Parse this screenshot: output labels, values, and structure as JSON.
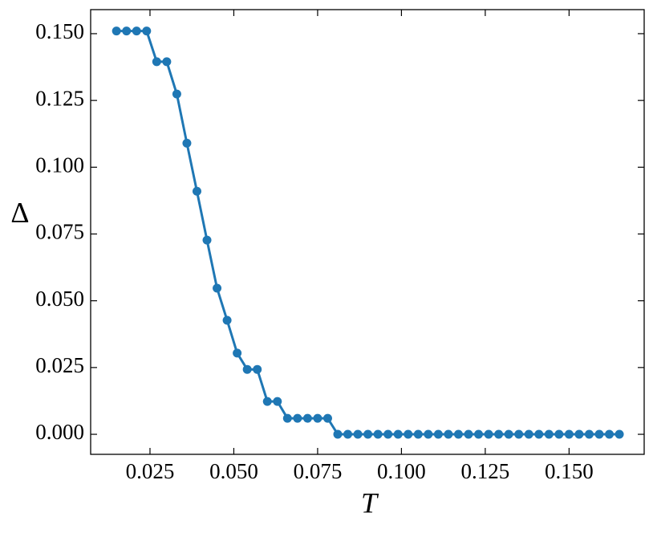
{
  "chart_data": {
    "type": "line",
    "xlabel": "T",
    "ylabel": "Δ",
    "x": [
      0.015,
      0.018,
      0.021,
      0.024,
      0.027,
      0.03,
      0.033,
      0.036,
      0.039,
      0.042,
      0.045,
      0.048,
      0.051,
      0.054,
      0.057,
      0.06,
      0.063,
      0.066,
      0.069,
      0.072,
      0.075,
      0.078,
      0.081,
      0.084,
      0.087,
      0.09,
      0.093,
      0.096,
      0.099,
      0.102,
      0.105,
      0.108,
      0.111,
      0.114,
      0.117,
      0.12,
      0.123,
      0.126,
      0.129,
      0.132,
      0.135,
      0.138,
      0.141,
      0.144,
      0.147,
      0.15,
      0.153,
      0.156,
      0.159,
      0.162,
      0.165
    ],
    "series": [
      {
        "color": "#1f77b4",
        "values": [
          0.151,
          0.151,
          0.151,
          0.151,
          0.1395,
          0.1395,
          0.1274,
          0.109,
          0.091,
          0.0727,
          0.0547,
          0.0427,
          0.0304,
          0.0243,
          0.0243,
          0.0123,
          0.0123,
          0.006,
          0.006,
          0.006,
          0.006,
          0.006,
          0,
          0,
          0,
          0,
          0,
          0,
          0,
          0,
          0,
          0,
          0,
          0,
          0,
          0,
          0,
          0,
          0,
          0,
          0,
          0,
          0,
          0,
          0,
          0,
          0,
          0,
          0,
          0,
          0
        ]
      }
    ],
    "xlim": [
      0.0073,
      0.1724
    ],
    "ylim": [
      -0.0075,
      0.159
    ],
    "xticks": [
      0.025,
      {
        "value": 0.05,
        "label": "0.050"
      },
      0.075,
      {
        "value": 0.1,
        "label": "0.100"
      },
      0.125,
      {
        "value": 0.15,
        "label": "0.150"
      }
    ],
    "yticks": [
      {
        "value": 0,
        "label": "0.000"
      },
      0.025,
      {
        "value": 0.05,
        "label": "0.050"
      },
      0.075,
      {
        "value": 0.1,
        "label": "0.100"
      },
      0.125,
      {
        "value": 0.15,
        "label": "0.150"
      }
    ]
  }
}
